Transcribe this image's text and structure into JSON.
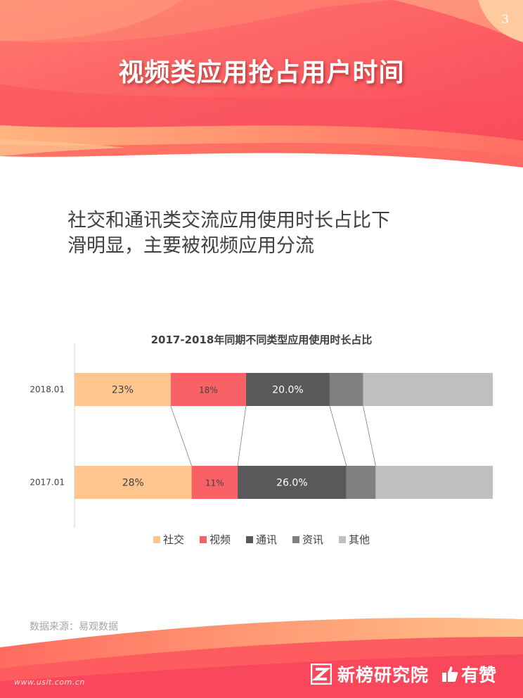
{
  "page_number": "3",
  "title": "视频类应用抢占用户时间",
  "headline_lines": [
    "社交和通讯类交流应用使用时长占比下",
    "滑明显，主要被视频应用分流"
  ],
  "source": "数据来源：易观数据",
  "brand": {
    "name": "新榜研究院",
    "partner": "有赞",
    "watermark": "www.usit.com.cn"
  },
  "chart_data": {
    "type": "bar",
    "orientation": "horizontal",
    "stacked": "100%",
    "title": "2017-2018年同期不同类型应用使用时长占比",
    "categories": [
      "2018.01",
      "2017.01"
    ],
    "series": [
      {
        "name": "社交",
        "values": [
          23,
          28
        ],
        "labels": [
          "23%",
          "28%"
        ],
        "color": "#FFC58F",
        "label_color": "#404040"
      },
      {
        "name": "视频",
        "values": [
          18,
          11
        ],
        "labels": [
          "18%",
          "11%"
        ],
        "color": "#FA6166",
        "label_color": "#404040"
      },
      {
        "name": "通讯",
        "values": [
          20,
          26
        ],
        "labels": [
          "20.0%",
          "26.0%"
        ],
        "color": "#595959",
        "label_color": "#ffffff"
      },
      {
        "name": "资讯",
        "values": [
          8,
          7
        ],
        "labels": [
          "",
          ""
        ],
        "color": "#808080",
        "label_color": "#ffffff"
      },
      {
        "name": "其他",
        "values": [
          31,
          28
        ],
        "labels": [
          "",
          ""
        ],
        "color": "#BFBFBF",
        "label_color": "#404040"
      }
    ],
    "xlim": [
      0,
      100
    ],
    "series_lines": true,
    "legend_position": "bottom",
    "grid": false
  }
}
